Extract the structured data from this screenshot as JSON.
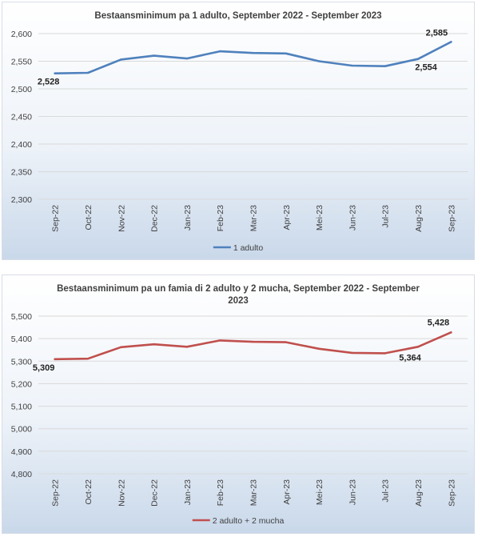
{
  "chart_data": [
    {
      "type": "line",
      "title": "Bestaansminimum pa 1 adulto, September 2022 - September 2023",
      "title_lines": [
        "Bestaansminimum pa 1 adulto, September 2022 - September 2023"
      ],
      "categories": [
        "Sep-22",
        "Oct-22",
        "Nov-22",
        "Dec-22",
        "Jan-23",
        "Feb-23",
        "Mar-23",
        "Apr-23",
        "Mei-23",
        "Jun-23",
        "Jul-23",
        "Aug-23",
        "Sep-23"
      ],
      "series": [
        {
          "name": "1 adulto",
          "color": "#4f81bd",
          "values": [
            2528,
            2529,
            2553,
            2560,
            2555,
            2568,
            2565,
            2564,
            2550,
            2542,
            2541,
            2554,
            2585
          ]
        }
      ],
      "ylim": [
        2300,
        2600
      ],
      "yticks": [
        "2,300",
        "2,350",
        "2,400",
        "2,450",
        "2,500",
        "2,550",
        "2,600"
      ],
      "data_labels": [
        {
          "index": 0,
          "text": "2,528"
        },
        {
          "index": 11,
          "text": "2,554"
        },
        {
          "index": 12,
          "text": "2,585"
        }
      ],
      "grid": true,
      "legend": "bottom-center",
      "background": "light-blue-gradient"
    },
    {
      "type": "line",
      "title": "Bestaansminimum pa un famia di 2 adulto y 2 mucha, September 2022 - September 2023",
      "title_lines": [
        "Bestaansminimum pa un famia di 2 adulto y 2 mucha, September 2022 - September",
        "2023"
      ],
      "categories": [
        "Sep-22",
        "Oct-22",
        "Nov-22",
        "Dec-22",
        "Jan-23",
        "Feb-23",
        "Mar-23",
        "Apr-23",
        "Mei-23",
        "Jun-23",
        "Jul-23",
        "Aug-23",
        "Sep-23"
      ],
      "series": [
        {
          "name": "2 adulto + 2 mucha",
          "color": "#c0504d",
          "values": [
            5309,
            5311,
            5362,
            5375,
            5364,
            5392,
            5386,
            5384,
            5355,
            5337,
            5335,
            5364,
            5428
          ]
        }
      ],
      "ylim": [
        4800,
        5500
      ],
      "yticks": [
        "4,800",
        "4,900",
        "5,000",
        "5,100",
        "5,200",
        "5,300",
        "5,400",
        "5,500"
      ],
      "data_labels": [
        {
          "index": 0,
          "text": "5,309"
        },
        {
          "index": 11,
          "text": "5,364"
        },
        {
          "index": 12,
          "text": "5,428"
        }
      ],
      "grid": true,
      "legend": "bottom-center",
      "background": "light-blue-gradient"
    }
  ]
}
